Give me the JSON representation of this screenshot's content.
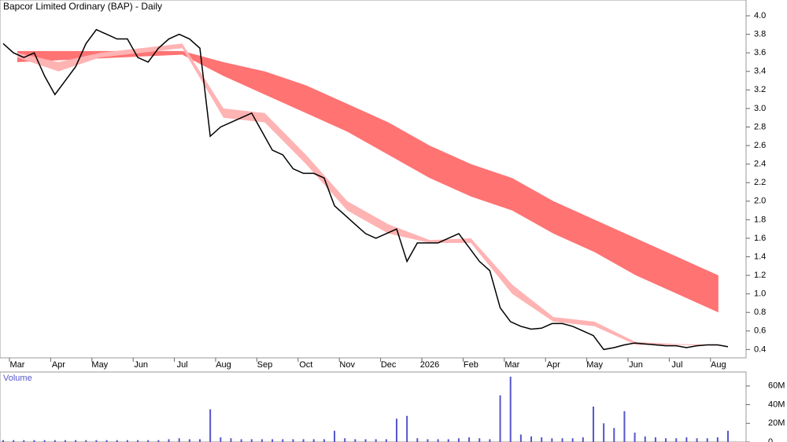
{
  "chart_data": {
    "type": "stock",
    "title": "Bapcor Limited Ordinary (BAP) - Daily",
    "categories": [
      "Mar",
      "Apr",
      "May",
      "Jun",
      "Jul",
      "Aug",
      "Sep",
      "Oct",
      "Nov",
      "Dec",
      "2026",
      "Feb",
      "Mar",
      "Apr",
      "May",
      "Jun",
      "Jul",
      "Aug"
    ],
    "price": {
      "color": "#000000",
      "values": [
        3.7,
        3.6,
        3.55,
        3.6,
        3.35,
        3.15,
        3.3,
        3.45,
        3.7,
        3.85,
        3.8,
        3.75,
        3.75,
        3.55,
        3.5,
        3.65,
        3.75,
        3.8,
        3.75,
        3.65,
        2.7,
        2.8,
        2.85,
        2.9,
        2.95,
        2.75,
        2.55,
        2.5,
        2.35,
        2.3,
        2.3,
        2.25,
        1.95,
        1.85,
        1.75,
        1.65,
        1.6,
        1.65,
        1.7,
        1.35,
        1.55,
        1.55,
        1.55,
        1.6,
        1.65,
        1.5,
        1.35,
        1.25,
        0.85,
        0.7,
        0.65,
        0.62,
        0.63,
        0.68,
        0.68,
        0.65,
        0.6,
        0.55,
        0.4,
        0.42,
        0.45,
        0.47,
        0.46,
        0.45,
        0.44,
        0.44,
        0.42,
        0.44,
        0.45,
        0.45,
        0.43
      ]
    },
    "bands": [
      {
        "color": "#ff7373",
        "upper": [
          3.62,
          3.62,
          3.62,
          3.62,
          3.62,
          3.5,
          3.4,
          3.25,
          3.05,
          2.85,
          2.6,
          2.4,
          2.25,
          2.0,
          1.8,
          1.6,
          1.4,
          1.2
        ],
        "lower": [
          3.5,
          3.52,
          3.54,
          3.56,
          3.58,
          3.35,
          3.15,
          2.95,
          2.75,
          2.5,
          2.25,
          2.05,
          1.9,
          1.65,
          1.45,
          1.2,
          1.0,
          0.8
        ]
      },
      {
        "color": "#ffb3b3",
        "upper": [
          3.6,
          3.5,
          3.6,
          3.65,
          3.7,
          3.0,
          2.95,
          2.5,
          2.0,
          1.75,
          1.58,
          1.6,
          1.1,
          0.75,
          0.7,
          0.48,
          0.46,
          0.45
        ],
        "lower": [
          3.55,
          3.4,
          3.55,
          3.6,
          3.65,
          2.9,
          2.85,
          2.4,
          1.9,
          1.65,
          1.55,
          1.55,
          1.0,
          0.7,
          0.65,
          0.45,
          0.45,
          0.44
        ]
      }
    ],
    "ylim": [
      0.31,
      4.17
    ],
    "yticks": [
      0.4,
      0.6,
      0.8,
      {
        "value": 1.0,
        "label": "1.0"
      },
      1.2,
      1.4,
      1.6,
      1.8,
      {
        "value": 2.0,
        "label": "2.0"
      },
      2.2,
      2.4,
      2.6,
      2.8,
      {
        "value": 3.0,
        "label": "3.0"
      },
      3.2,
      3.4,
      3.6,
      3.8,
      {
        "value": 4.0,
        "label": "4.0"
      }
    ],
    "volume": {
      "label": "Volume",
      "color": "#5555cc",
      "values": [
        2,
        2,
        2,
        2,
        2,
        2,
        2,
        2,
        2,
        2,
        2,
        2,
        2,
        2,
        2,
        2,
        3,
        4,
        3,
        3,
        35,
        5,
        4,
        3,
        3,
        3,
        3,
        3,
        3,
        3,
        3,
        3,
        12,
        4,
        3,
        3,
        3,
        3,
        25,
        28,
        4,
        3,
        3,
        3,
        4,
        5,
        4,
        3,
        50,
        70,
        8,
        6,
        5,
        4,
        4,
        4,
        5,
        38,
        20,
        15,
        33,
        10,
        6,
        5,
        4,
        4,
        5,
        4,
        4,
        5,
        12
      ],
      "ylim": [
        0,
        75
      ],
      "yticks": [
        0,
        {
          "value": 20,
          "label": "20M"
        },
        {
          "value": 40,
          "label": "40M"
        },
        {
          "value": 60,
          "label": "60M"
        }
      ]
    }
  }
}
